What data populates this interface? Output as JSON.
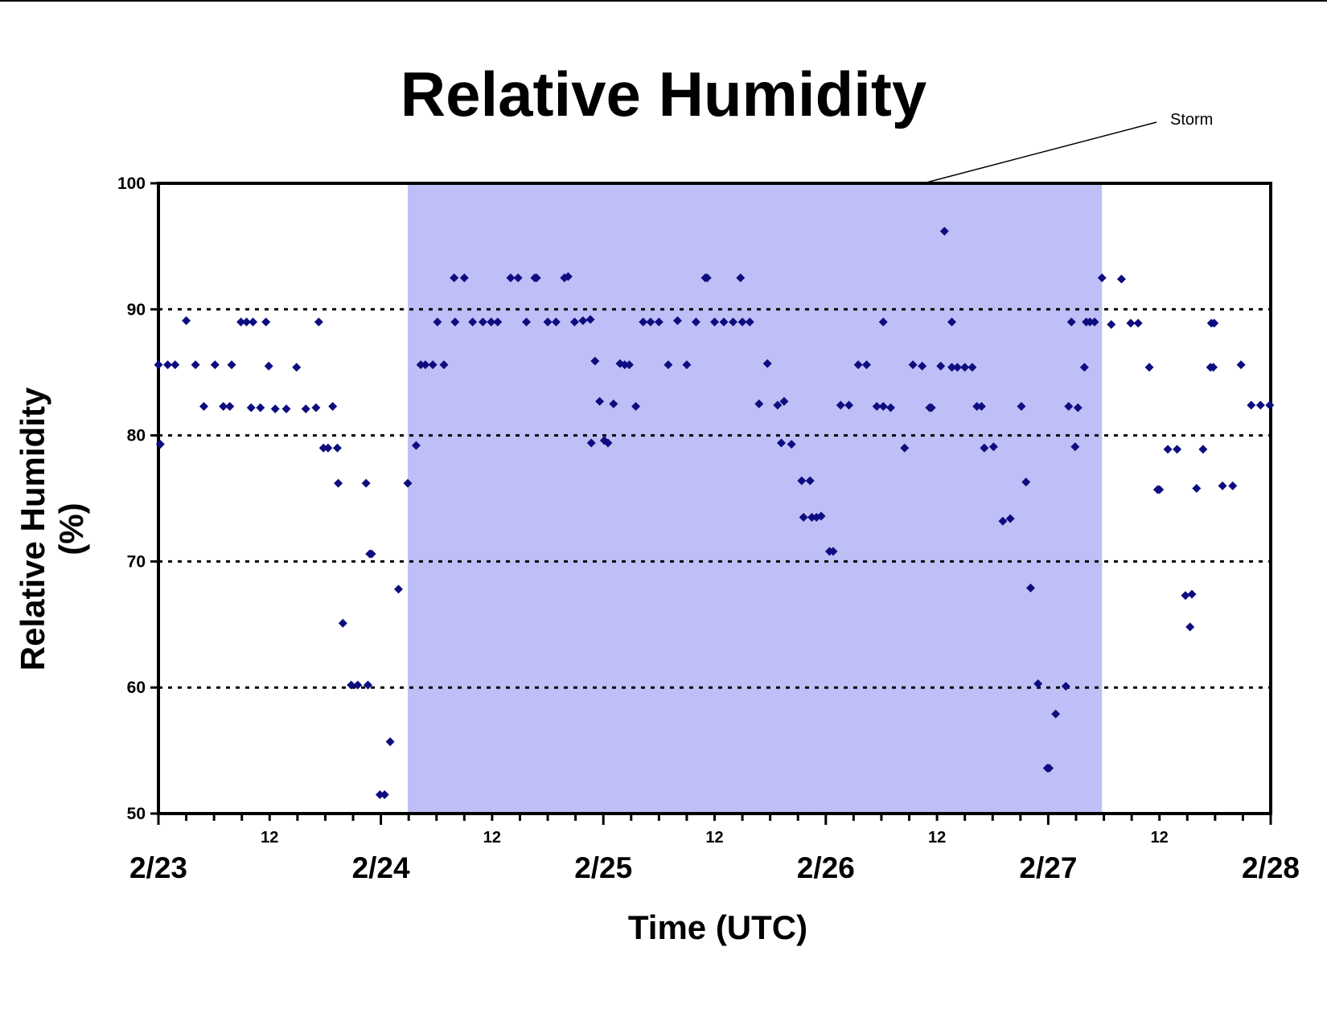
{
  "chart_data": {
    "type": "scatter",
    "title": "Relative Humidity",
    "xlabel": "Time (UTC)",
    "ylabel": "Relative Humidity (%)",
    "annotation": "Storm",
    "x_unit": "hours from 2/23 00 UTC",
    "xlim": [
      0,
      120
    ],
    "ylim": [
      50,
      100
    ],
    "y_ticks": [
      50,
      60,
      70,
      80,
      90,
      100
    ],
    "gridlines": [
      60,
      70,
      80,
      90
    ],
    "grid_style": "dotted",
    "x_major_ticks": [
      {
        "hour": 0,
        "label": "2/23"
      },
      {
        "hour": 24,
        "label": "2/24"
      },
      {
        "hour": 48,
        "label": "2/25"
      },
      {
        "hour": 72,
        "label": "2/26"
      },
      {
        "hour": 96,
        "label": "2/27"
      },
      {
        "hour": 120,
        "label": "2/28"
      }
    ],
    "x_minor_labels": [
      {
        "hour": 12,
        "label": "12"
      },
      {
        "hour": 36,
        "label": "12"
      },
      {
        "hour": 60,
        "label": "12"
      },
      {
        "hour": 84,
        "label": "12"
      },
      {
        "hour": 108,
        "label": "12"
      }
    ],
    "storm_period_hours": [
      26.9,
      101.8
    ],
    "storm_color": "#bfbff7",
    "marker_color": "#0d0d80",
    "points": [
      [
        0.0,
        85.6
      ],
      [
        0.2,
        79.3
      ],
      [
        1.0,
        85.6
      ],
      [
        1.8,
        85.6
      ],
      [
        3.0,
        89.1
      ],
      [
        4.0,
        85.6
      ],
      [
        4.9,
        82.3
      ],
      [
        6.1,
        85.6
      ],
      [
        7.0,
        82.3
      ],
      [
        7.7,
        82.3
      ],
      [
        7.9,
        85.6
      ],
      [
        8.9,
        89.0
      ],
      [
        9.5,
        89.0
      ],
      [
        10.0,
        82.2
      ],
      [
        10.2,
        89.0
      ],
      [
        11.0,
        82.2
      ],
      [
        11.6,
        89.0
      ],
      [
        11.9,
        85.5
      ],
      [
        12.6,
        82.1
      ],
      [
        13.8,
        82.1
      ],
      [
        14.9,
        85.4
      ],
      [
        15.9,
        82.1
      ],
      [
        17.0,
        82.2
      ],
      [
        17.3,
        89.0
      ],
      [
        17.8,
        79.0
      ],
      [
        18.3,
        79.0
      ],
      [
        18.8,
        82.3
      ],
      [
        19.3,
        79.0
      ],
      [
        19.4,
        76.2
      ],
      [
        19.9,
        65.1
      ],
      [
        20.8,
        60.2
      ],
      [
        21.5,
        60.2
      ],
      [
        22.4,
        76.2
      ],
      [
        22.6,
        60.2
      ],
      [
        22.8,
        70.6
      ],
      [
        23.0,
        70.6
      ],
      [
        23.9,
        51.5
      ],
      [
        24.4,
        51.5
      ],
      [
        25.0,
        55.7
      ],
      [
        25.9,
        67.8
      ],
      [
        26.9,
        76.2
      ],
      [
        27.8,
        79.2
      ],
      [
        28.3,
        85.6
      ],
      [
        28.8,
        85.6
      ],
      [
        29.6,
        85.6
      ],
      [
        30.1,
        89.0
      ],
      [
        30.8,
        85.6
      ],
      [
        31.9,
        92.5
      ],
      [
        32.0,
        89.0
      ],
      [
        33.0,
        92.5
      ],
      [
        33.9,
        89.0
      ],
      [
        35.0,
        89.0
      ],
      [
        35.9,
        89.0
      ],
      [
        36.6,
        89.0
      ],
      [
        38.0,
        92.5
      ],
      [
        38.8,
        92.5
      ],
      [
        39.7,
        89.0
      ],
      [
        40.6,
        92.5
      ],
      [
        40.8,
        92.5
      ],
      [
        42.0,
        89.0
      ],
      [
        42.9,
        89.0
      ],
      [
        43.8,
        92.5
      ],
      [
        44.2,
        92.6
      ],
      [
        44.9,
        89.0
      ],
      [
        45.8,
        89.1
      ],
      [
        46.6,
        89.2
      ],
      [
        46.7,
        79.4
      ],
      [
        47.1,
        85.9
      ],
      [
        47.6,
        82.7
      ],
      [
        48.1,
        79.6
      ],
      [
        48.5,
        79.4
      ],
      [
        49.1,
        82.5
      ],
      [
        49.8,
        85.7
      ],
      [
        50.3,
        85.6
      ],
      [
        50.8,
        85.6
      ],
      [
        51.5,
        82.3
      ],
      [
        52.3,
        89.0
      ],
      [
        53.1,
        89.0
      ],
      [
        54.0,
        89.0
      ],
      [
        55.0,
        85.6
      ],
      [
        56.0,
        89.1
      ],
      [
        57.0,
        85.6
      ],
      [
        58.0,
        89.0
      ],
      [
        59.0,
        92.5
      ],
      [
        59.2,
        92.5
      ],
      [
        60.0,
        89.0
      ],
      [
        61.0,
        89.0
      ],
      [
        62.0,
        89.0
      ],
      [
        62.8,
        92.5
      ],
      [
        63.0,
        89.0
      ],
      [
        63.8,
        89.0
      ],
      [
        64.8,
        82.5
      ],
      [
        65.7,
        85.7
      ],
      [
        66.8,
        82.4
      ],
      [
        67.2,
        79.4
      ],
      [
        67.5,
        82.7
      ],
      [
        68.3,
        79.3
      ],
      [
        69.4,
        76.4
      ],
      [
        69.6,
        73.5
      ],
      [
        70.3,
        76.4
      ],
      [
        70.5,
        73.5
      ],
      [
        71.0,
        73.5
      ],
      [
        71.5,
        73.6
      ],
      [
        72.4,
        70.8
      ],
      [
        72.8,
        70.8
      ],
      [
        73.6,
        82.4
      ],
      [
        74.5,
        82.4
      ],
      [
        75.5,
        85.6
      ],
      [
        76.4,
        85.6
      ],
      [
        77.5,
        82.3
      ],
      [
        78.2,
        82.3
      ],
      [
        78.2,
        89.0
      ],
      [
        79.0,
        82.2
      ],
      [
        80.5,
        79.0
      ],
      [
        81.4,
        85.6
      ],
      [
        82.4,
        85.5
      ],
      [
        83.2,
        82.2
      ],
      [
        83.4,
        82.2
      ],
      [
        84.4,
        85.5
      ],
      [
        84.8,
        96.2
      ],
      [
        85.6,
        85.4
      ],
      [
        85.6,
        89.0
      ],
      [
        86.2,
        85.4
      ],
      [
        87.0,
        85.4
      ],
      [
        87.8,
        85.4
      ],
      [
        88.3,
        82.3
      ],
      [
        88.8,
        82.3
      ],
      [
        89.1,
        79.0
      ],
      [
        90.1,
        79.1
      ],
      [
        91.1,
        73.2
      ],
      [
        91.9,
        73.4
      ],
      [
        93.1,
        82.3
      ],
      [
        93.6,
        76.3
      ],
      [
        94.1,
        67.9
      ],
      [
        94.9,
        60.3
      ],
      [
        95.9,
        53.6
      ],
      [
        96.1,
        53.6
      ],
      [
        96.8,
        57.9
      ],
      [
        97.9,
        60.1
      ],
      [
        98.2,
        82.3
      ],
      [
        98.5,
        89.0
      ],
      [
        98.9,
        79.1
      ],
      [
        99.2,
        82.2
      ],
      [
        99.9,
        85.4
      ],
      [
        100.1,
        89.0
      ],
      [
        100.5,
        89.0
      ],
      [
        101.0,
        89.0
      ],
      [
        101.8,
        92.5
      ],
      [
        102.8,
        88.8
      ],
      [
        103.9,
        92.4
      ],
      [
        104.9,
        88.9
      ],
      [
        105.7,
        88.9
      ],
      [
        106.9,
        85.4
      ],
      [
        107.8,
        75.7
      ],
      [
        108.0,
        75.7
      ],
      [
        108.9,
        78.9
      ],
      [
        109.9,
        78.9
      ],
      [
        110.8,
        67.3
      ],
      [
        111.3,
        64.8
      ],
      [
        111.5,
        67.4
      ],
      [
        112.0,
        75.8
      ],
      [
        112.7,
        78.9
      ],
      [
        113.5,
        85.4
      ],
      [
        113.6,
        88.9
      ],
      [
        113.8,
        85.4
      ],
      [
        113.9,
        88.9
      ],
      [
        114.8,
        76.0
      ],
      [
        115.9,
        76.0
      ],
      [
        116.8,
        85.6
      ],
      [
        117.9,
        82.4
      ],
      [
        118.9,
        82.4
      ],
      [
        119.9,
        82.4
      ]
    ]
  }
}
